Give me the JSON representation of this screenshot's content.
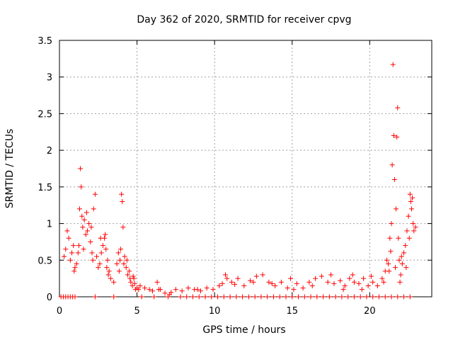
{
  "chart_data": {
    "type": "scatter",
    "title": "Day 362 of 2020, SRMTID for receiver cpvg",
    "xlabel": "GPS time / hours",
    "ylabel": "SRMTID / TECUs",
    "xlim": [
      0,
      24
    ],
    "ylim": [
      0,
      3.5
    ],
    "xticks": [
      0,
      5,
      10,
      15,
      20
    ],
    "yticks": [
      0,
      0.5,
      1,
      1.5,
      2,
      2.5,
      3,
      3.5
    ],
    "ytick_labels": [
      "0",
      "0.5",
      "1",
      "1.5",
      "2",
      "2.5",
      "3",
      "3.5"
    ],
    "grid": true,
    "marker": "+",
    "color": "#ff0000",
    "series": [
      {
        "name": "SRMTID",
        "points": [
          [
            0.1,
            0
          ],
          [
            0.25,
            0
          ],
          [
            0.4,
            0
          ],
          [
            0.55,
            0
          ],
          [
            0.7,
            0
          ],
          [
            0.85,
            0
          ],
          [
            1.0,
            0
          ],
          [
            2.3,
            0
          ],
          [
            3.5,
            0
          ],
          [
            5.3,
            0
          ],
          [
            6.1,
            0
          ],
          [
            7.0,
            0
          ],
          [
            7.8,
            0
          ],
          [
            8.2,
            0
          ],
          [
            8.6,
            0
          ],
          [
            9.0,
            0
          ],
          [
            9.4,
            0
          ],
          [
            9.8,
            0
          ],
          [
            10.2,
            0
          ],
          [
            10.6,
            0
          ],
          [
            11.0,
            0
          ],
          [
            11.4,
            0
          ],
          [
            11.8,
            0
          ],
          [
            12.2,
            0
          ],
          [
            12.6,
            0
          ],
          [
            13.0,
            0
          ],
          [
            13.4,
            0
          ],
          [
            13.8,
            0
          ],
          [
            14.2,
            0
          ],
          [
            14.6,
            0
          ],
          [
            15.0,
            0
          ],
          [
            15.4,
            0
          ],
          [
            15.8,
            0
          ],
          [
            16.2,
            0
          ],
          [
            16.6,
            0
          ],
          [
            17.0,
            0
          ],
          [
            17.4,
            0
          ],
          [
            17.8,
            0
          ],
          [
            18.2,
            0
          ],
          [
            18.6,
            0
          ],
          [
            19.0,
            0
          ],
          [
            19.4,
            0
          ],
          [
            19.8,
            0
          ],
          [
            20.2,
            0
          ],
          [
            20.6,
            0
          ],
          [
            21.0,
            0
          ],
          [
            21.4,
            0
          ],
          [
            21.8,
            0
          ],
          [
            22.2,
            0
          ],
          [
            22.6,
            0
          ],
          [
            0.3,
            0.55
          ],
          [
            0.4,
            0.65
          ],
          [
            0.5,
            0.9
          ],
          [
            0.6,
            0.8
          ],
          [
            0.7,
            0.5
          ],
          [
            0.8,
            0.6
          ],
          [
            0.9,
            0.7
          ],
          [
            1.0,
            0.4
          ],
          [
            1.1,
            0.45
          ],
          [
            1.2,
            0.6
          ],
          [
            1.3,
            1.2
          ],
          [
            1.35,
            1.75
          ],
          [
            1.4,
            1.5
          ],
          [
            1.45,
            1.1
          ],
          [
            1.5,
            0.95
          ],
          [
            1.6,
            1.05
          ],
          [
            1.7,
            0.85
          ],
          [
            1.8,
            0.9
          ],
          [
            1.9,
            1.0
          ],
          [
            2.0,
            0.75
          ],
          [
            2.1,
            0.6
          ],
          [
            2.2,
            1.2
          ],
          [
            2.3,
            1.4
          ],
          [
            2.4,
            0.55
          ],
          [
            2.5,
            0.4
          ],
          [
            2.6,
            0.45
          ],
          [
            2.7,
            0.6
          ],
          [
            2.8,
            0.7
          ],
          [
            2.9,
            0.8
          ],
          [
            3.0,
            0.65
          ],
          [
            3.1,
            0.5
          ],
          [
            3.2,
            0.35
          ],
          [
            3.3,
            0.25
          ],
          [
            3.5,
            0.2
          ],
          [
            3.7,
            0.45
          ],
          [
            3.8,
            0.6
          ],
          [
            3.9,
            0.5
          ],
          [
            4.0,
            1.4
          ],
          [
            4.05,
            1.3
          ],
          [
            4.1,
            0.95
          ],
          [
            4.2,
            0.55
          ],
          [
            4.3,
            0.4
          ],
          [
            4.4,
            0.3
          ],
          [
            4.5,
            0.35
          ],
          [
            4.6,
            0.2
          ],
          [
            4.7,
            0.15
          ],
          [
            4.8,
            0.25
          ],
          [
            4.9,
            0.1
          ],
          [
            5.0,
            0.12
          ],
          [
            5.2,
            0.15
          ],
          [
            5.5,
            0.12
          ],
          [
            5.8,
            0.1
          ],
          [
            6.0,
            0.08
          ],
          [
            6.3,
            0.2
          ],
          [
            6.5,
            0.1
          ],
          [
            6.8,
            0.05
          ],
          [
            7.2,
            0.06
          ],
          [
            7.5,
            0.1
          ],
          [
            7.9,
            0.08
          ],
          [
            8.3,
            0.12
          ],
          [
            8.7,
            0.1
          ],
          [
            9.1,
            0.08
          ],
          [
            9.5,
            0.12
          ],
          [
            9.9,
            0.1
          ],
          [
            10.3,
            0.15
          ],
          [
            10.7,
            0.3
          ],
          [
            10.8,
            0.25
          ],
          [
            11.1,
            0.2
          ],
          [
            11.5,
            0.25
          ],
          [
            11.9,
            0.15
          ],
          [
            12.3,
            0.22
          ],
          [
            12.7,
            0.28
          ],
          [
            13.1,
            0.3
          ],
          [
            13.5,
            0.2
          ],
          [
            13.9,
            0.15
          ],
          [
            14.3,
            0.2
          ],
          [
            14.7,
            0.12
          ],
          [
            14.9,
            0.25
          ],
          [
            15.3,
            0.18
          ],
          [
            15.7,
            0.12
          ],
          [
            16.1,
            0.2
          ],
          [
            16.5,
            0.25
          ],
          [
            16.9,
            0.28
          ],
          [
            17.3,
            0.2
          ],
          [
            17.7,
            0.18
          ],
          [
            18.1,
            0.22
          ],
          [
            18.4,
            0.15
          ],
          [
            18.7,
            0.25
          ],
          [
            19.0,
            0.2
          ],
          [
            19.3,
            0.18
          ],
          [
            19.6,
            0.25
          ],
          [
            19.9,
            0.15
          ],
          [
            20.2,
            0.2
          ],
          [
            20.5,
            0.15
          ],
          [
            20.8,
            0.25
          ],
          [
            21.0,
            0.35
          ],
          [
            21.1,
            0.5
          ],
          [
            21.2,
            0.45
          ],
          [
            21.3,
            0.8
          ],
          [
            21.4,
            1.0
          ],
          [
            21.45,
            1.8
          ],
          [
            21.5,
            3.17
          ],
          [
            21.55,
            2.2
          ],
          [
            21.6,
            1.6
          ],
          [
            21.7,
            1.2
          ],
          [
            21.75,
            2.18
          ],
          [
            21.8,
            2.58
          ],
          [
            21.85,
            0.8
          ],
          [
            21.9,
            0.5
          ],
          [
            22.0,
            0.3
          ],
          [
            22.1,
            0.45
          ],
          [
            22.2,
            0.6
          ],
          [
            22.3,
            0.7
          ],
          [
            22.4,
            0.9
          ],
          [
            22.5,
            1.1
          ],
          [
            22.6,
            1.4
          ],
          [
            22.65,
            1.3
          ],
          [
            22.7,
            1.2
          ],
          [
            22.8,
            1.0
          ],
          [
            22.85,
            0.9
          ],
          [
            0.95,
            0.35
          ],
          [
            1.25,
            0.7
          ],
          [
            1.55,
            0.65
          ],
          [
            1.75,
            1.15
          ],
          [
            2.05,
            0.95
          ],
          [
            2.15,
            0.5
          ],
          [
            2.65,
            0.8
          ],
          [
            2.95,
            0.85
          ],
          [
            3.05,
            0.4
          ],
          [
            3.15,
            0.3
          ],
          [
            3.85,
            0.35
          ],
          [
            3.95,
            0.65
          ],
          [
            4.15,
            0.45
          ],
          [
            4.35,
            0.5
          ],
          [
            4.55,
            0.25
          ],
          [
            4.75,
            0.28
          ],
          [
            4.85,
            0.18
          ],
          [
            5.1,
            0.1
          ],
          [
            6.4,
            0.1
          ],
          [
            7.1,
            0.03
          ],
          [
            8.9,
            0.1
          ],
          [
            10.5,
            0.18
          ],
          [
            11.3,
            0.17
          ],
          [
            12.5,
            0.2
          ],
          [
            13.7,
            0.18
          ],
          [
            15.1,
            0.1
          ],
          [
            16.3,
            0.15
          ],
          [
            17.5,
            0.3
          ],
          [
            18.3,
            0.1
          ],
          [
            18.9,
            0.3
          ],
          [
            19.5,
            0.1
          ],
          [
            20.1,
            0.28
          ],
          [
            20.9,
            0.2
          ],
          [
            21.25,
            0.35
          ],
          [
            21.35,
            0.62
          ],
          [
            21.65,
            0.4
          ],
          [
            21.95,
            0.2
          ],
          [
            22.05,
            0.55
          ],
          [
            22.35,
            0.4
          ],
          [
            22.55,
            0.8
          ],
          [
            22.75,
            1.35
          ],
          [
            22.95,
            0.95
          ]
        ]
      }
    ]
  }
}
